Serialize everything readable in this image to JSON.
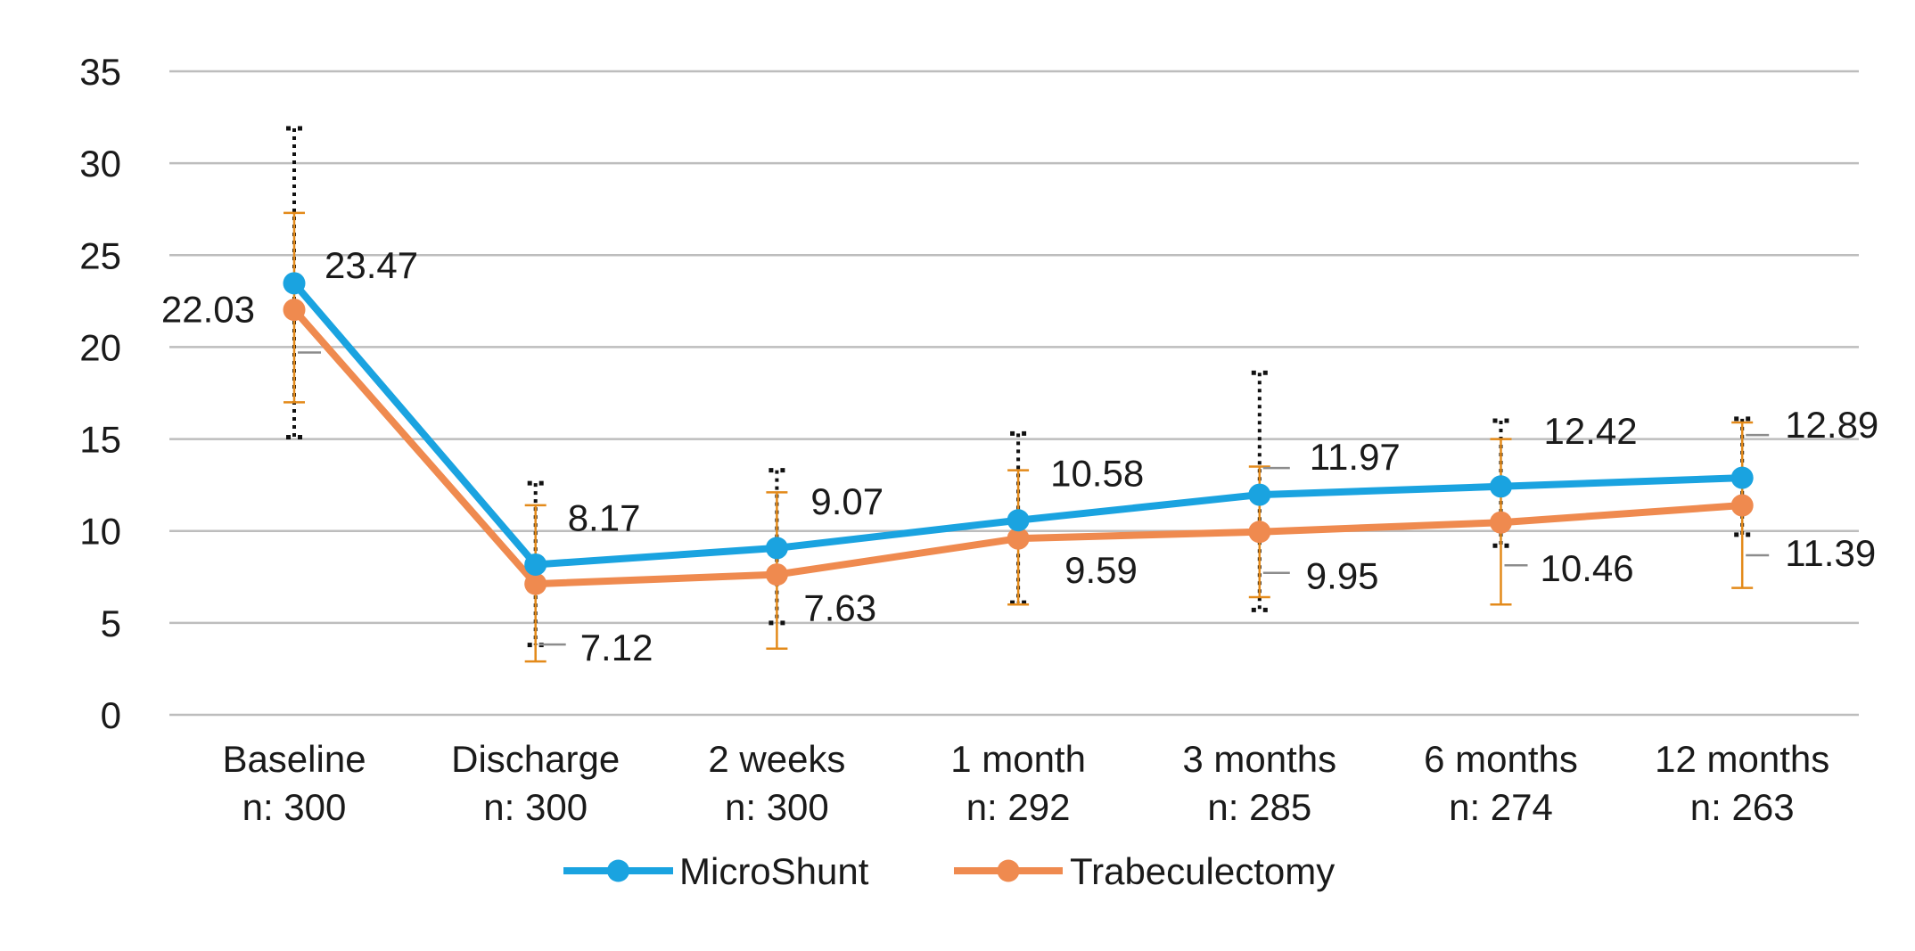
{
  "chart_data": {
    "type": "line",
    "title": "",
    "xlabel": "",
    "ylabel": "",
    "ylim": [
      0,
      35
    ],
    "yticks": [
      0,
      5,
      10,
      15,
      20,
      25,
      30,
      35
    ],
    "grid": true,
    "legend_position": "bottom",
    "categories": [
      {
        "name": "Baseline",
        "n": "n: 300"
      },
      {
        "name": "Discharge",
        "n": "n: 300"
      },
      {
        "name": "2 weeks",
        "n": "n: 300"
      },
      {
        "name": "1 month",
        "n": "n: 292"
      },
      {
        "name": "3 months",
        "n": "n: 285"
      },
      {
        "name": "6 months",
        "n": "n: 274"
      },
      {
        "name": "12 months",
        "n": "n: 263"
      }
    ],
    "series": [
      {
        "name": "MicroShunt",
        "color": "#1aa3e0",
        "values": [
          23.47,
          8.17,
          9.07,
          10.58,
          11.97,
          12.42,
          12.89
        ],
        "labels": [
          "23.47",
          "8.17",
          "9.07",
          "10.58",
          "11.97",
          "12.42",
          "12.89"
        ],
        "error_low": [
          15.1,
          3.8,
          5.0,
          6.1,
          5.7,
          9.2,
          9.8
        ],
        "error_high": [
          31.9,
          12.6,
          13.3,
          15.3,
          18.6,
          16.0,
          16.1
        ],
        "error_color": "#111111"
      },
      {
        "name": "Trabeculectomy",
        "color": "#ef8a4f",
        "values": [
          22.03,
          7.12,
          7.63,
          9.59,
          9.95,
          10.46,
          11.39
        ],
        "labels": [
          "22.03",
          "7.12",
          "7.63",
          "9.59",
          "9.95",
          "10.46",
          "11.39"
        ],
        "error_low": [
          17.0,
          2.9,
          3.6,
          6.0,
          6.4,
          6.0,
          6.9
        ],
        "error_high": [
          27.3,
          11.4,
          12.1,
          13.3,
          13.5,
          15.0,
          15.9
        ],
        "error_color": "#e38a1a"
      }
    ]
  }
}
